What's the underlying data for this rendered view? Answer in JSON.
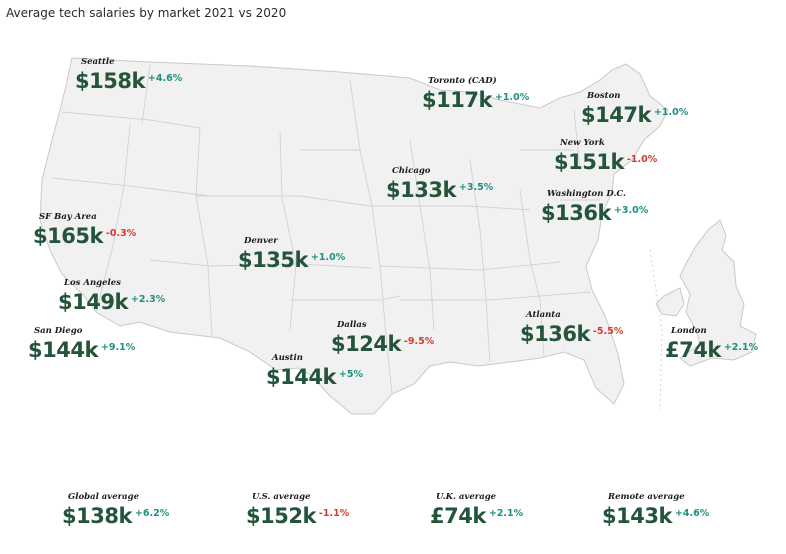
{
  "title": "Average tech salaries by market 2021 vs 2020",
  "colors": {
    "value": "#24543a",
    "positive": "#1f8f7f",
    "negative": "#d63a2c",
    "map_fill": "#f1f1f1",
    "map_stroke": "#c9c9c9"
  },
  "markets": [
    {
      "name": "Seattle",
      "value": "$158k",
      "change": "+4.6%",
      "dir": "pos"
    },
    {
      "name": "Toronto (CAD)",
      "value": "$117k",
      "change": "+1.0%",
      "dir": "pos"
    },
    {
      "name": "Boston",
      "value": "$147k",
      "change": "+1.0%",
      "dir": "pos"
    },
    {
      "name": "New York",
      "value": "$151k",
      "change": "-1.0%",
      "dir": "neg"
    },
    {
      "name": "Chicago",
      "value": "$133k",
      "change": "+3.5%",
      "dir": "pos"
    },
    {
      "name": "Washington D.C.",
      "value": "$136k",
      "change": "+3.0%",
      "dir": "pos"
    },
    {
      "name": "SF Bay Area",
      "value": "$165k",
      "change": "-0.3%",
      "dir": "neg"
    },
    {
      "name": "Denver",
      "value": "$135k",
      "change": "+1.0%",
      "dir": "pos"
    },
    {
      "name": "Los Angeles",
      "value": "$149k",
      "change": "+2.3%",
      "dir": "pos"
    },
    {
      "name": "San Diego",
      "value": "$144k",
      "change": "+9.1%",
      "dir": "pos"
    },
    {
      "name": "Dallas",
      "value": "$124k",
      "change": "-9.5%",
      "dir": "neg"
    },
    {
      "name": "Atlanta",
      "value": "$136k",
      "change": "-5.5%",
      "dir": "neg"
    },
    {
      "name": "London",
      "value": "£74k",
      "change": "+2.1%",
      "dir": "pos"
    },
    {
      "name": "Austin",
      "value": "$144k",
      "change": "+5%",
      "dir": "pos"
    }
  ],
  "averages": [
    {
      "name": "Global average",
      "value": "$138k",
      "change": "+6.2%",
      "dir": "pos"
    },
    {
      "name": "U.S. average",
      "value": "$152k",
      "change": "-1.1%",
      "dir": "neg"
    },
    {
      "name": "U.K. average",
      "value": "£74k",
      "change": "+2.1%",
      "dir": "pos"
    },
    {
      "name": "Remote average",
      "value": "$143k",
      "change": "+4.6%",
      "dir": "pos"
    }
  ]
}
